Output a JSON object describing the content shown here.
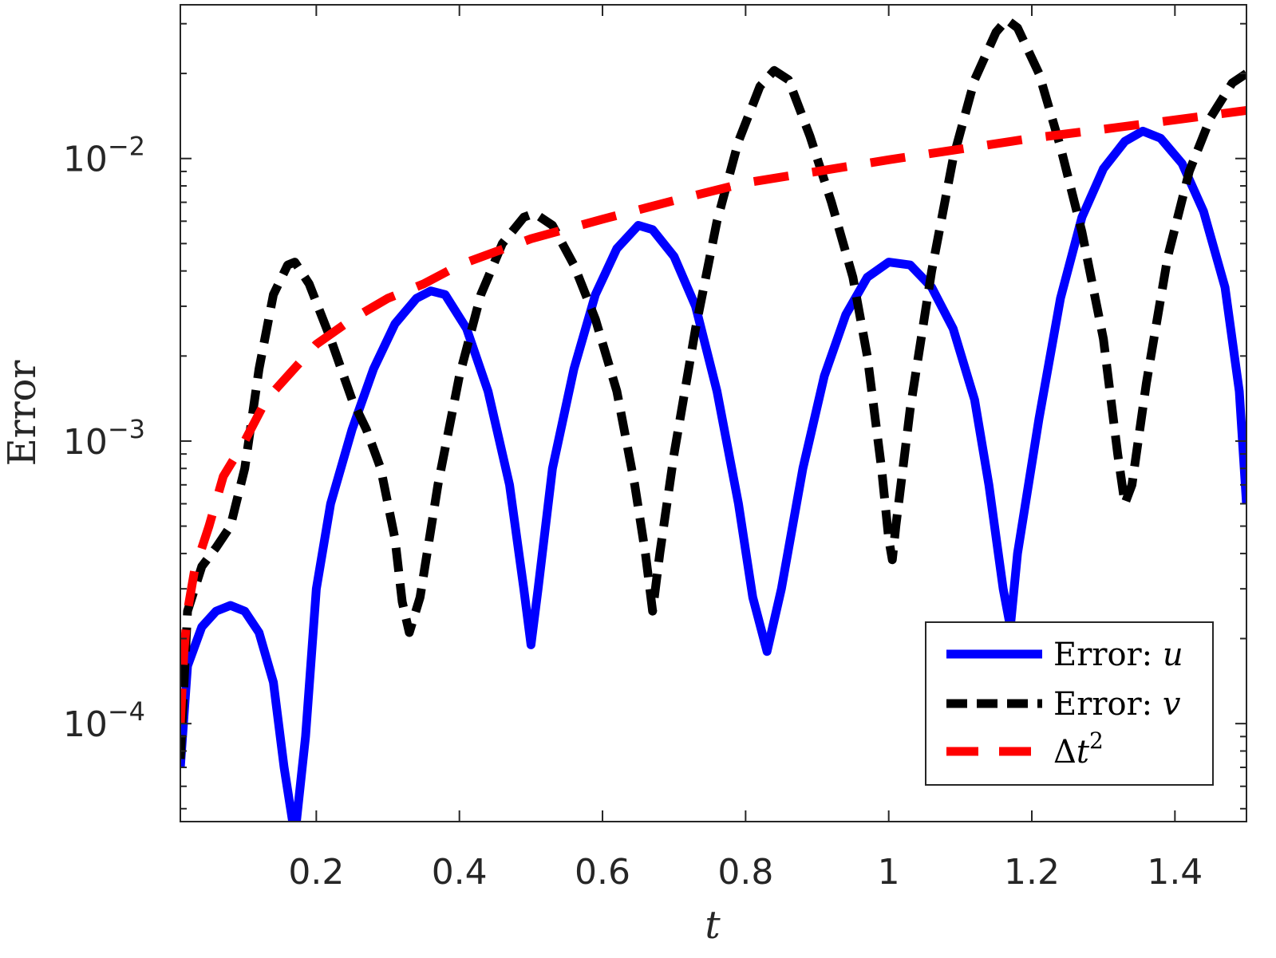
{
  "chart_data": {
    "type": "line",
    "xlabel": "t",
    "ylabel": "Error",
    "xlim": [
      0.01,
      1.5
    ],
    "ylim": [
      4.5e-05,
      0.035
    ],
    "yscale": "log",
    "xticks": [
      0.2,
      0.4,
      0.6,
      0.8,
      1,
      1.2,
      1.4
    ],
    "xtick_labels": [
      "0.2",
      "0.4",
      "0.6",
      "0.8",
      "1",
      "1.2",
      "1.4"
    ],
    "yticks": [
      {
        "value": 0.0001,
        "base": "10",
        "exp": "−4"
      },
      {
        "value": 0.001,
        "base": "10",
        "exp": "−3"
      },
      {
        "value": 0.01,
        "base": "10",
        "exp": "−2"
      }
    ],
    "grid": false,
    "legend_position": "bottom-right",
    "series": [
      {
        "name": "Error: u",
        "legend_prefix": "Error: ",
        "legend_var": "u",
        "color": "#0000ff",
        "style": "solid",
        "points": [
          [
            0.01,
            7e-05
          ],
          [
            0.02,
            0.00016
          ],
          [
            0.04,
            0.00022
          ],
          [
            0.06,
            0.00025
          ],
          [
            0.08,
            0.000262
          ],
          [
            0.1,
            0.00025
          ],
          [
            0.12,
            0.00021
          ],
          [
            0.14,
            0.00014
          ],
          [
            0.155,
            7e-05
          ],
          [
            0.17,
            4e-05
          ],
          [
            0.185,
            9e-05
          ],
          [
            0.2,
            0.0003
          ],
          [
            0.22,
            0.0006
          ],
          [
            0.25,
            0.0011
          ],
          [
            0.28,
            0.0018
          ],
          [
            0.31,
            0.0026
          ],
          [
            0.34,
            0.0032
          ],
          [
            0.36,
            0.0034
          ],
          [
            0.38,
            0.0033
          ],
          [
            0.41,
            0.0025
          ],
          [
            0.44,
            0.0015
          ],
          [
            0.47,
            0.0007
          ],
          [
            0.49,
            0.0003
          ],
          [
            0.5,
            0.00019
          ],
          [
            0.51,
            0.0003
          ],
          [
            0.53,
            0.0008
          ],
          [
            0.56,
            0.0018
          ],
          [
            0.59,
            0.0033
          ],
          [
            0.62,
            0.0048
          ],
          [
            0.65,
            0.0058
          ],
          [
            0.67,
            0.0056
          ],
          [
            0.7,
            0.0045
          ],
          [
            0.73,
            0.003
          ],
          [
            0.76,
            0.0015
          ],
          [
            0.79,
            0.0006
          ],
          [
            0.81,
            0.00028
          ],
          [
            0.83,
            0.00018
          ],
          [
            0.85,
            0.0003
          ],
          [
            0.88,
            0.0008
          ],
          [
            0.91,
            0.0017
          ],
          [
            0.94,
            0.0028
          ],
          [
            0.97,
            0.0038
          ],
          [
            1.0,
            0.0043
          ],
          [
            1.03,
            0.0042
          ],
          [
            1.06,
            0.0035
          ],
          [
            1.09,
            0.0025
          ],
          [
            1.12,
            0.0014
          ],
          [
            1.14,
            0.0007
          ],
          [
            1.16,
            0.0003
          ],
          [
            1.17,
            0.00022
          ],
          [
            1.18,
            0.0004
          ],
          [
            1.21,
            0.0012
          ],
          [
            1.24,
            0.0032
          ],
          [
            1.27,
            0.0062
          ],
          [
            1.3,
            0.0092
          ],
          [
            1.33,
            0.0115
          ],
          [
            1.355,
            0.0125
          ],
          [
            1.38,
            0.0118
          ],
          [
            1.41,
            0.0096
          ],
          [
            1.44,
            0.0065
          ],
          [
            1.47,
            0.0035
          ],
          [
            1.49,
            0.0015
          ],
          [
            1.5,
            0.0006
          ]
        ]
      },
      {
        "name": "Error: v",
        "legend_prefix": "Error: ",
        "legend_var": "v",
        "color": "#000000",
        "style": "dashed",
        "points": [
          [
            0.01,
            7.5e-05
          ],
          [
            0.02,
            0.00025
          ],
          [
            0.04,
            0.00036
          ],
          [
            0.06,
            0.00042
          ],
          [
            0.08,
            0.0005
          ],
          [
            0.1,
            0.0008
          ],
          [
            0.12,
            0.0018
          ],
          [
            0.14,
            0.0033
          ],
          [
            0.16,
            0.0042
          ],
          [
            0.17,
            0.0043
          ],
          [
            0.19,
            0.0036
          ],
          [
            0.22,
            0.0023
          ],
          [
            0.25,
            0.0014
          ],
          [
            0.27,
            0.0011
          ],
          [
            0.29,
            0.0008
          ],
          [
            0.31,
            0.00045
          ],
          [
            0.32,
            0.00027
          ],
          [
            0.33,
            0.00021
          ],
          [
            0.345,
            0.00028
          ],
          [
            0.37,
            0.0007
          ],
          [
            0.4,
            0.0017
          ],
          [
            0.43,
            0.0033
          ],
          [
            0.46,
            0.005
          ],
          [
            0.49,
            0.0062
          ],
          [
            0.505,
            0.0064
          ],
          [
            0.53,
            0.0058
          ],
          [
            0.56,
            0.0042
          ],
          [
            0.59,
            0.0027
          ],
          [
            0.62,
            0.0015
          ],
          [
            0.645,
            0.0007
          ],
          [
            0.66,
            0.0004
          ],
          [
            0.67,
            0.00025
          ],
          [
            0.68,
            0.0004
          ],
          [
            0.7,
            0.0009
          ],
          [
            0.73,
            0.0025
          ],
          [
            0.76,
            0.006
          ],
          [
            0.79,
            0.0115
          ],
          [
            0.82,
            0.018
          ],
          [
            0.84,
            0.0205
          ],
          [
            0.86,
            0.019
          ],
          [
            0.89,
            0.012
          ],
          [
            0.92,
            0.007
          ],
          [
            0.95,
            0.0038
          ],
          [
            0.97,
            0.002
          ],
          [
            0.99,
            0.0008
          ],
          [
            1.0,
            0.00045
          ],
          [
            1.005,
            0.00038
          ],
          [
            1.01,
            0.0005
          ],
          [
            1.03,
            0.0013
          ],
          [
            1.06,
            0.004
          ],
          [
            1.09,
            0.01
          ],
          [
            1.12,
            0.019
          ],
          [
            1.15,
            0.028
          ],
          [
            1.165,
            0.031
          ],
          [
            1.18,
            0.029
          ],
          [
            1.21,
            0.02
          ],
          [
            1.24,
            0.011
          ],
          [
            1.27,
            0.0055
          ],
          [
            1.3,
            0.0023
          ],
          [
            1.32,
            0.0009
          ],
          [
            1.33,
            0.0006
          ],
          [
            1.34,
            0.0007
          ],
          [
            1.36,
            0.0016
          ],
          [
            1.39,
            0.0045
          ],
          [
            1.42,
            0.009
          ],
          [
            1.45,
            0.014
          ],
          [
            1.48,
            0.0185
          ],
          [
            1.5,
            0.02
          ]
        ]
      },
      {
        "name": "Δt^2",
        "legend_prefix": "Δ",
        "legend_var": "t",
        "legend_sup": "2",
        "color": "#ff0000",
        "style": "longdash",
        "points": [
          [
            0.01,
            0.0001
          ],
          [
            0.015,
            0.00018
          ],
          [
            0.02,
            0.00025
          ],
          [
            0.03,
            0.00035
          ],
          [
            0.05,
            0.0005
          ],
          [
            0.07,
            0.00075
          ],
          [
            0.1,
            0.001
          ],
          [
            0.13,
            0.0014
          ],
          [
            0.16,
            0.0017
          ],
          [
            0.2,
            0.0022
          ],
          [
            0.25,
            0.0027
          ],
          [
            0.3,
            0.0032
          ],
          [
            0.35,
            0.0036
          ],
          [
            0.4,
            0.0042
          ],
          [
            0.5,
            0.0052
          ],
          [
            0.6,
            0.0061
          ],
          [
            0.7,
            0.0071
          ],
          [
            0.8,
            0.0082
          ],
          [
            0.9,
            0.009
          ],
          [
            1.0,
            0.0099
          ],
          [
            1.1,
            0.0108
          ],
          [
            1.2,
            0.0118
          ],
          [
            1.3,
            0.0127
          ],
          [
            1.4,
            0.0137
          ],
          [
            1.5,
            0.0148
          ]
        ]
      }
    ]
  }
}
